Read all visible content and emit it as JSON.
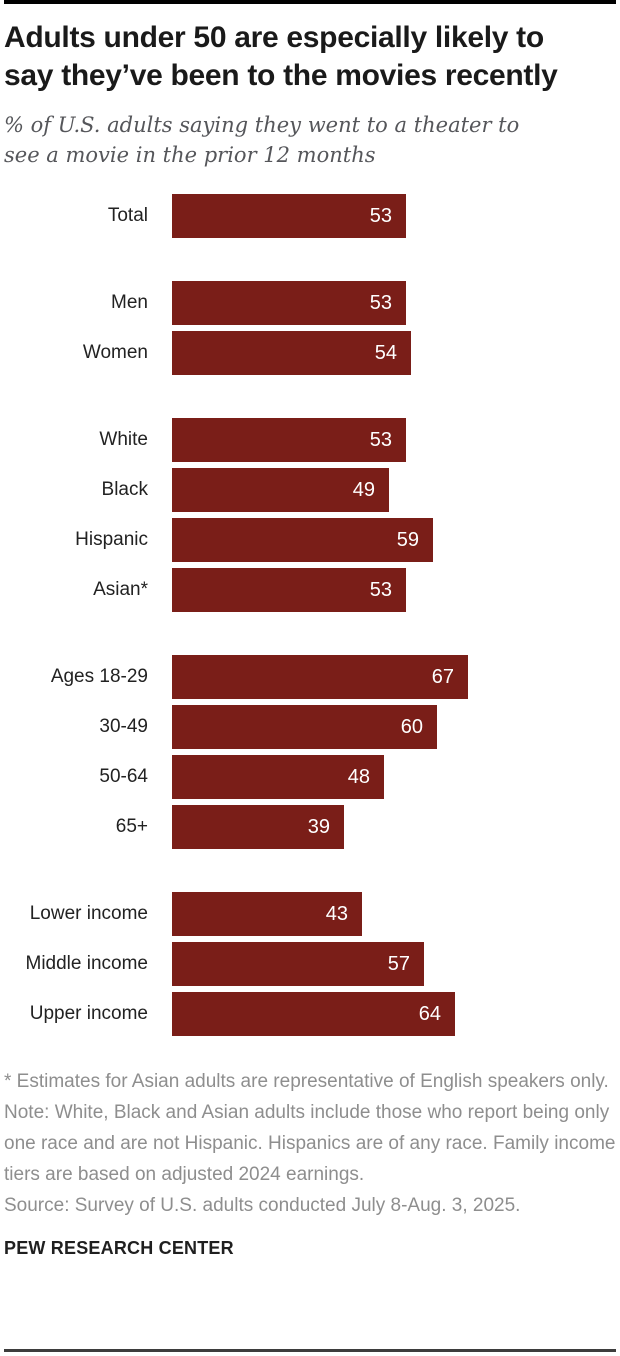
{
  "header": {
    "title_lines": [
      "Adults under 50 are especially likely to",
      "say they’ve been to the movies recently"
    ],
    "subtitle_lines": [
      "% of U.S. adults saying they went to a theater to",
      "see a movie in the prior 12 months"
    ]
  },
  "chart_data": {
    "type": "bar",
    "orientation": "horizontal",
    "title": "Adults under 50 are especially likely to say they’ve been to the movies recently",
    "subtitle": "% of U.S. adults saying they went to a theater to see a movie in the prior 12 months",
    "unit": "%",
    "xlim": [
      0,
      70
    ],
    "grid": false,
    "legend": false,
    "bar_color": "#7a1e18",
    "value_label_color": "#ffffff",
    "groups": [
      {
        "name": "total",
        "rows": [
          {
            "label": "Total",
            "value": 53
          }
        ]
      },
      {
        "name": "gender",
        "rows": [
          {
            "label": "Men",
            "value": 53
          },
          {
            "label": "Women",
            "value": 54
          }
        ]
      },
      {
        "name": "race-ethnicity",
        "rows": [
          {
            "label": "White",
            "value": 53
          },
          {
            "label": "Black",
            "value": 49
          },
          {
            "label": "Hispanic",
            "value": 59
          },
          {
            "label": "Asian*",
            "value": 53
          }
        ]
      },
      {
        "name": "age",
        "rows": [
          {
            "label": "Ages 18-29",
            "value": 67
          },
          {
            "label": "30-49",
            "value": 60
          },
          {
            "label": "50-64",
            "value": 48
          },
          {
            "label": "65+",
            "value": 39
          }
        ]
      },
      {
        "name": "income",
        "rows": [
          {
            "label": "Lower income",
            "value": 43
          },
          {
            "label": "Middle income",
            "value": 57
          },
          {
            "label": "Upper income",
            "value": 64
          }
        ]
      }
    ]
  },
  "notes": {
    "asterisk": "* Estimates for Asian adults are representative of English speakers only.",
    "note": "Note: White, Black and Asian adults include those who report being only one race and are not Hispanic. Hispanics are of any race. Family income tiers are based on adjusted 2024 earnings.",
    "source": "Source: Survey of U.S. adults conducted July 8-Aug. 3, 2025."
  },
  "footer": {
    "brand": "PEW RESEARCH CENTER"
  }
}
